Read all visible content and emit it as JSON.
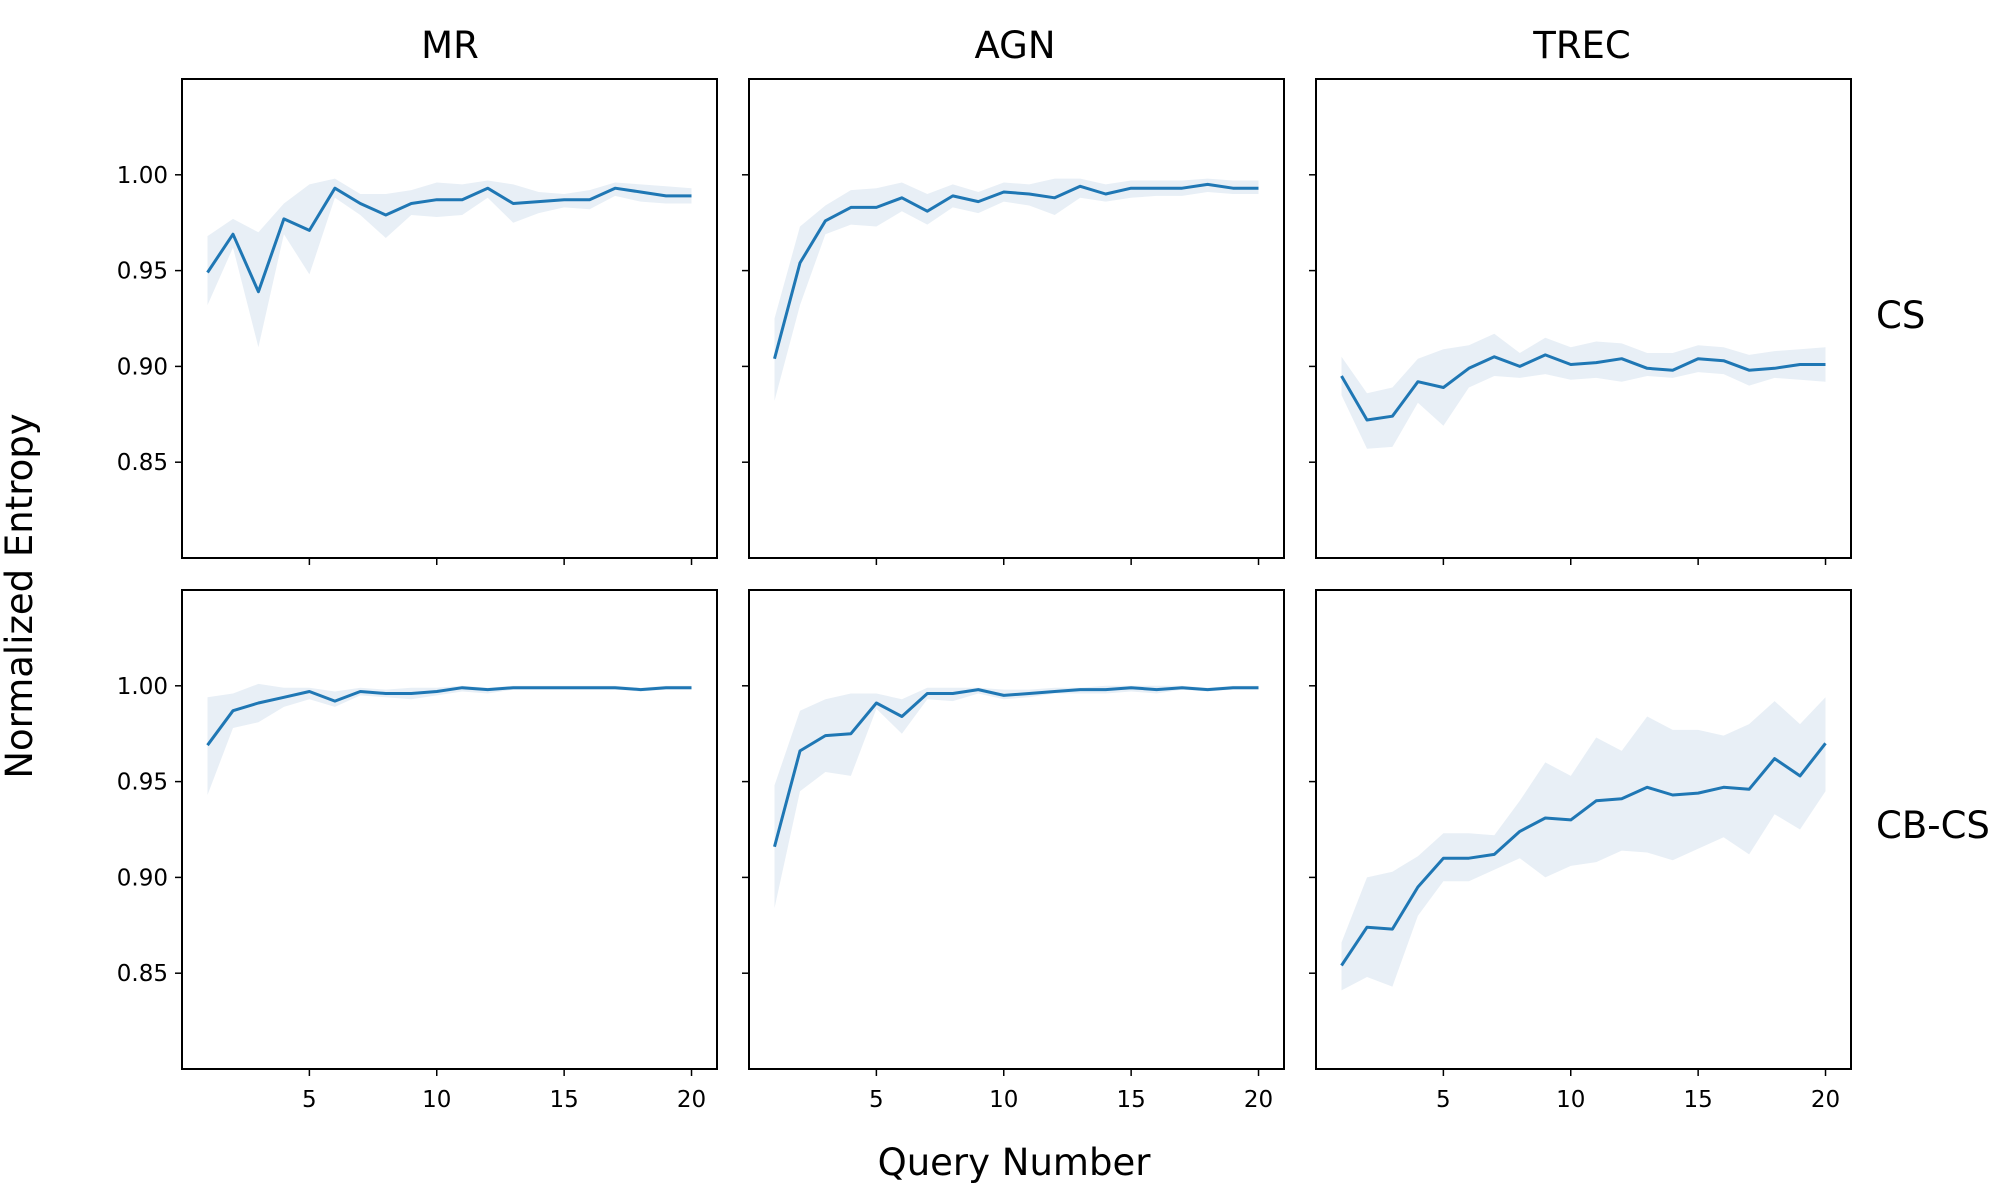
{
  "figure": {
    "ylabel": "Normalized Entropy",
    "xlabel": "Query Number",
    "column_titles": [
      "MR",
      "AGN",
      "TREC"
    ],
    "row_labels": [
      "CS",
      "CB-CS"
    ],
    "colors": {
      "line": "#1f77b4",
      "band": "#e8eff6",
      "frame": "#000000"
    }
  },
  "chart_data": [
    {
      "type": "line",
      "row": "CS",
      "column": "MR",
      "x": [
        1,
        2,
        3,
        4,
        5,
        6,
        7,
        8,
        9,
        10,
        11,
        12,
        13,
        14,
        15,
        16,
        17,
        18,
        19,
        20
      ],
      "y": [
        0.949,
        0.969,
        0.939,
        0.977,
        0.971,
        0.993,
        0.985,
        0.979,
        0.985,
        0.987,
        0.987,
        0.993,
        0.985,
        0.986,
        0.987,
        0.987,
        0.993,
        0.991,
        0.989,
        0.989
      ],
      "lower": [
        0.932,
        0.962,
        0.91,
        0.969,
        0.948,
        0.988,
        0.979,
        0.967,
        0.979,
        0.978,
        0.979,
        0.988,
        0.975,
        0.98,
        0.983,
        0.982,
        0.989,
        0.986,
        0.985,
        0.985
      ],
      "upper": [
        0.968,
        0.977,
        0.97,
        0.985,
        0.995,
        0.998,
        0.99,
        0.99,
        0.992,
        0.996,
        0.995,
        0.997,
        0.995,
        0.991,
        0.99,
        0.992,
        0.996,
        0.995,
        0.994,
        0.993
      ],
      "xticks": [
        5,
        10,
        15,
        20
      ],
      "yticks": [
        0.85,
        0.9,
        0.95,
        1.0
      ],
      "ytick_labels": [
        "0.85",
        "0.90",
        "0.95",
        "1.00"
      ],
      "xlim": [
        0,
        21
      ],
      "ylim": [
        0.8,
        1.05
      ]
    },
    {
      "type": "line",
      "row": "CS",
      "column": "AGN",
      "x": [
        1,
        2,
        3,
        4,
        5,
        6,
        7,
        8,
        9,
        10,
        11,
        12,
        13,
        14,
        15,
        16,
        17,
        18,
        19,
        20
      ],
      "y": [
        0.904,
        0.954,
        0.976,
        0.983,
        0.983,
        0.988,
        0.981,
        0.989,
        0.986,
        0.991,
        0.99,
        0.988,
        0.994,
        0.99,
        0.993,
        0.993,
        0.993,
        0.995,
        0.993,
        0.993
      ],
      "lower": [
        0.882,
        0.932,
        0.969,
        0.974,
        0.973,
        0.981,
        0.974,
        0.983,
        0.98,
        0.986,
        0.984,
        0.979,
        0.988,
        0.986,
        0.988,
        0.989,
        0.989,
        0.991,
        0.99,
        0.99
      ],
      "upper": [
        0.925,
        0.973,
        0.984,
        0.992,
        0.993,
        0.996,
        0.99,
        0.995,
        0.991,
        0.996,
        0.995,
        0.998,
        0.998,
        0.995,
        0.997,
        0.997,
        0.997,
        0.998,
        0.997,
        0.997
      ],
      "xticks": [
        5,
        10,
        15,
        20
      ],
      "yticks": [
        0.85,
        0.9,
        0.95,
        1.0
      ],
      "ytick_labels": [
        "0.85",
        "0.90",
        "0.95",
        "1.00"
      ],
      "xlim": [
        0,
        21
      ],
      "ylim": [
        0.8,
        1.05
      ]
    },
    {
      "type": "line",
      "row": "CS",
      "column": "TREC",
      "x": [
        1,
        2,
        3,
        4,
        5,
        6,
        7,
        8,
        9,
        10,
        11,
        12,
        13,
        14,
        15,
        16,
        17,
        18,
        19,
        20
      ],
      "y": [
        0.895,
        0.872,
        0.874,
        0.892,
        0.889,
        0.899,
        0.905,
        0.9,
        0.906,
        0.901,
        0.902,
        0.904,
        0.899,
        0.898,
        0.904,
        0.903,
        0.898,
        0.899,
        0.901,
        0.901
      ],
      "lower": [
        0.885,
        0.857,
        0.858,
        0.881,
        0.869,
        0.889,
        0.895,
        0.894,
        0.896,
        0.893,
        0.894,
        0.892,
        0.895,
        0.894,
        0.897,
        0.896,
        0.89,
        0.894,
        0.893,
        0.892
      ],
      "upper": [
        0.905,
        0.886,
        0.889,
        0.904,
        0.909,
        0.911,
        0.917,
        0.907,
        0.915,
        0.91,
        0.913,
        0.912,
        0.907,
        0.907,
        0.911,
        0.91,
        0.906,
        0.908,
        0.909,
        0.91
      ],
      "xticks": [
        5,
        10,
        15,
        20
      ],
      "yticks": [
        0.85,
        0.9,
        0.95,
        1.0
      ],
      "ytick_labels": [
        "0.85",
        "0.90",
        "0.95",
        "1.00"
      ],
      "xlim": [
        0,
        21
      ],
      "ylim": [
        0.8,
        1.05
      ]
    },
    {
      "type": "line",
      "row": "CB-CS",
      "column": "MR",
      "x": [
        1,
        2,
        3,
        4,
        5,
        6,
        7,
        8,
        9,
        10,
        11,
        12,
        13,
        14,
        15,
        16,
        17,
        18,
        19,
        20
      ],
      "y": [
        0.969,
        0.987,
        0.991,
        0.994,
        0.997,
        0.992,
        0.997,
        0.996,
        0.996,
        0.997,
        0.999,
        0.998,
        0.999,
        0.999,
        0.999,
        0.999,
        0.999,
        0.998,
        0.999,
        0.999
      ],
      "lower": [
        0.943,
        0.978,
        0.981,
        0.989,
        0.993,
        0.989,
        0.995,
        0.994,
        0.993,
        0.995,
        0.997,
        0.996,
        0.998,
        0.998,
        0.998,
        0.998,
        0.998,
        0.997,
        0.998,
        0.998
      ],
      "upper": [
        0.994,
        0.996,
        1.001,
        0.999,
        0.999,
        0.997,
        0.999,
        0.998,
        0.999,
        0.999,
        1.0,
        0.999,
        1.0,
        1.0,
        1.0,
        1.0,
        1.0,
        0.999,
        1.0,
        1.0
      ],
      "xticks": [
        5,
        10,
        15,
        20
      ],
      "yticks": [
        0.85,
        0.9,
        0.95,
        1.0
      ],
      "ytick_labels": [
        "0.85",
        "0.90",
        "0.95",
        "1.00"
      ],
      "xlim": [
        0,
        21
      ],
      "ylim": [
        0.8,
        1.05
      ]
    },
    {
      "type": "line",
      "row": "CB-CS",
      "column": "AGN",
      "x": [
        1,
        2,
        3,
        4,
        5,
        6,
        7,
        8,
        9,
        10,
        11,
        12,
        13,
        14,
        15,
        16,
        17,
        18,
        19,
        20
      ],
      "y": [
        0.916,
        0.966,
        0.974,
        0.975,
        0.991,
        0.984,
        0.996,
        0.996,
        0.998,
        0.995,
        0.996,
        0.997,
        0.998,
        0.998,
        0.999,
        0.998,
        0.999,
        0.998,
        0.999,
        0.999
      ],
      "lower": [
        0.884,
        0.945,
        0.955,
        0.953,
        0.988,
        0.975,
        0.993,
        0.992,
        0.996,
        0.993,
        0.994,
        0.996,
        0.996,
        0.996,
        0.997,
        0.996,
        0.998,
        0.997,
        0.998,
        0.998
      ],
      "upper": [
        0.948,
        0.987,
        0.993,
        0.996,
        0.996,
        0.993,
        0.999,
        0.999,
        0.999,
        0.998,
        0.998,
        0.999,
        0.999,
        1.0,
        1.0,
        1.0,
        1.0,
        0.999,
        1.0,
        1.0
      ],
      "xticks": [
        5,
        10,
        15,
        20
      ],
      "yticks": [
        0.85,
        0.9,
        0.95,
        1.0
      ],
      "ytick_labels": [
        "0.85",
        "0.90",
        "0.95",
        "1.00"
      ],
      "xlim": [
        0,
        21
      ],
      "ylim": [
        0.8,
        1.05
      ]
    },
    {
      "type": "line",
      "row": "CB-CS",
      "column": "TREC",
      "x": [
        1,
        2,
        3,
        4,
        5,
        6,
        7,
        8,
        9,
        10,
        11,
        12,
        13,
        14,
        15,
        16,
        17,
        18,
        19,
        20
      ],
      "y": [
        0.854,
        0.874,
        0.873,
        0.895,
        0.91,
        0.91,
        0.912,
        0.924,
        0.931,
        0.93,
        0.94,
        0.941,
        0.947,
        0.943,
        0.944,
        0.947,
        0.946,
        0.962,
        0.953,
        0.97
      ],
      "lower": [
        0.841,
        0.848,
        0.843,
        0.88,
        0.898,
        0.898,
        0.904,
        0.91,
        0.9,
        0.906,
        0.908,
        0.914,
        0.913,
        0.909,
        0.915,
        0.921,
        0.912,
        0.933,
        0.925,
        0.945
      ],
      "upper": [
        0.866,
        0.9,
        0.903,
        0.911,
        0.923,
        0.923,
        0.922,
        0.94,
        0.96,
        0.953,
        0.973,
        0.966,
        0.984,
        0.977,
        0.977,
        0.974,
        0.98,
        0.992,
        0.98,
        0.994
      ],
      "xticks": [
        5,
        10,
        15,
        20
      ],
      "yticks": [
        0.85,
        0.9,
        0.95,
        1.0
      ],
      "ytick_labels": [
        "0.85",
        "0.90",
        "0.95",
        "1.00"
      ],
      "xlim": [
        0,
        21
      ],
      "ylim": [
        0.8,
        1.05
      ]
    }
  ]
}
